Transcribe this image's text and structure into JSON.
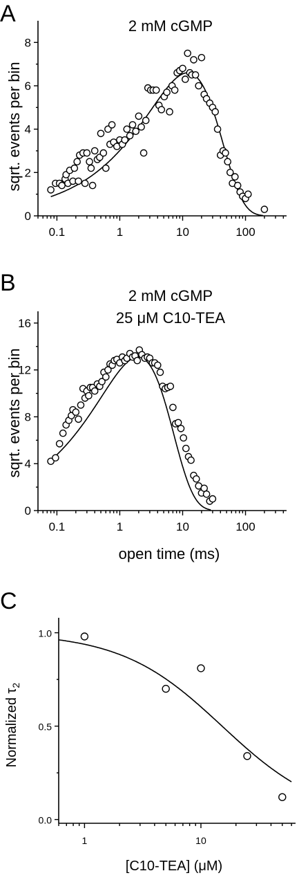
{
  "chart_data": [
    {
      "panel": "A",
      "type": "scatter",
      "title": "2 mM cGMP",
      "subtitle": "",
      "xlabel": "",
      "ylabel": "sqrt. events per bin",
      "xscale": "log",
      "xlim": [
        0.05,
        450
      ],
      "ylim": [
        0,
        9
      ],
      "xticks": [
        0.1,
        1,
        10,
        100
      ],
      "xtick_labels": [
        "0.1",
        "1",
        "10",
        "100"
      ],
      "yticks": [
        0,
        2,
        4,
        6,
        8
      ],
      "ytick_labels": [
        "0",
        "2",
        "4",
        "6",
        "8"
      ],
      "grid": false,
      "points": [
        [
          0.08,
          1.2
        ],
        [
          0.095,
          1.5
        ],
        [
          0.11,
          1.5
        ],
        [
          0.12,
          1.4
        ],
        [
          0.135,
          1.7
        ],
        [
          0.14,
          1.9
        ],
        [
          0.15,
          1.5
        ],
        [
          0.16,
          2.1
        ],
        [
          0.18,
          1.6
        ],
        [
          0.19,
          2.2
        ],
        [
          0.21,
          2.5
        ],
        [
          0.22,
          1.6
        ],
        [
          0.23,
          2.8
        ],
        [
          0.26,
          2.9
        ],
        [
          0.28,
          1.5
        ],
        [
          0.3,
          2.9
        ],
        [
          0.33,
          2.5
        ],
        [
          0.35,
          2.2
        ],
        [
          0.37,
          1.4
        ],
        [
          0.4,
          3.0
        ],
        [
          0.44,
          2.6
        ],
        [
          0.48,
          2.7
        ],
        [
          0.5,
          3.8
        ],
        [
          0.55,
          2.9
        ],
        [
          0.6,
          2.2
        ],
        [
          0.65,
          4.0
        ],
        [
          0.7,
          3.3
        ],
        [
          0.75,
          4.2
        ],
        [
          0.8,
          3.4
        ],
        [
          0.9,
          3.2
        ],
        [
          1.0,
          3.5
        ],
        [
          1.1,
          3.3
        ],
        [
          1.2,
          3.5
        ],
        [
          1.3,
          4.0
        ],
        [
          1.45,
          3.7
        ],
        [
          1.6,
          4.2
        ],
        [
          1.8,
          3.9
        ],
        [
          2.0,
          4.6
        ],
        [
          2.2,
          4.1
        ],
        [
          2.4,
          2.9
        ],
        [
          2.6,
          4.4
        ],
        [
          2.8,
          5.9
        ],
        [
          3.1,
          5.8
        ],
        [
          3.4,
          5.8
        ],
        [
          3.8,
          5.8
        ],
        [
          4.2,
          5.1
        ],
        [
          4.6,
          4.9
        ],
        [
          5.1,
          5.5
        ],
        [
          5.6,
          5.7
        ],
        [
          6.2,
          4.8
        ],
        [
          6.8,
          6.0
        ],
        [
          7.5,
          5.8
        ],
        [
          8.2,
          6.6
        ],
        [
          9,
          6.7
        ],
        [
          10,
          6.8
        ],
        [
          11,
          6.3
        ],
        [
          12,
          7.5
        ],
        [
          13,
          6.6
        ],
        [
          14,
          6.5
        ],
        [
          15,
          7.2
        ],
        [
          16,
          6.5
        ],
        [
          18,
          6.0
        ],
        [
          20,
          7.3
        ],
        [
          22,
          5.6
        ],
        [
          24,
          5.4
        ],
        [
          27,
          5.2
        ],
        [
          30,
          5.0
        ],
        [
          33,
          4.8
        ],
        [
          36,
          4.0
        ],
        [
          40,
          2.8
        ],
        [
          44,
          3.0
        ],
        [
          48,
          2.9
        ],
        [
          52,
          2.5
        ],
        [
          57,
          2.0
        ],
        [
          62,
          1.5
        ],
        [
          68,
          1.8
        ],
        [
          75,
          1.4
        ],
        [
          82,
          1.1
        ],
        [
          90,
          0.9
        ],
        [
          100,
          0.8
        ],
        [
          110,
          1.0
        ],
        [
          200,
          0.3
        ]
      ],
      "fit": {
        "model": "log-binned exponential",
        "tau_ms": 12.0,
        "peak": 6.6,
        "x_range": [
          0.08,
          190
        ]
      }
    },
    {
      "panel": "B",
      "type": "scatter",
      "title": "2 mM cGMP",
      "subtitle": "25 μM C10-TEA",
      "xlabel": "open time (ms)",
      "ylabel": "sqrt. events per bin",
      "xscale": "log",
      "xlim": [
        0.05,
        450
      ],
      "ylim": [
        0,
        17
      ],
      "xticks": [
        0.1,
        1,
        10,
        100
      ],
      "xtick_labels": [
        "0.1",
        "1",
        "10",
        "100"
      ],
      "yticks": [
        0,
        4,
        8,
        12,
        16
      ],
      "ytick_labels": [
        "0",
        "4",
        "8",
        "12",
        "16"
      ],
      "grid": false,
      "points": [
        [
          0.08,
          4.2
        ],
        [
          0.095,
          4.5
        ],
        [
          0.11,
          5.7
        ],
        [
          0.125,
          6.6
        ],
        [
          0.14,
          7.3
        ],
        [
          0.155,
          7.7
        ],
        [
          0.17,
          8.1
        ],
        [
          0.18,
          8.6
        ],
        [
          0.2,
          8.4
        ],
        [
          0.22,
          7.8
        ],
        [
          0.24,
          9.0
        ],
        [
          0.26,
          10.4
        ],
        [
          0.28,
          9.6
        ],
        [
          0.3,
          10.2
        ],
        [
          0.32,
          9.8
        ],
        [
          0.34,
          10.5
        ],
        [
          0.37,
          10.5
        ],
        [
          0.4,
          10.2
        ],
        [
          0.44,
          10.8
        ],
        [
          0.48,
          10.6
        ],
        [
          0.52,
          11.0
        ],
        [
          0.56,
          11.8
        ],
        [
          0.6,
          11.4
        ],
        [
          0.65,
          12.0
        ],
        [
          0.7,
          12.5
        ],
        [
          0.76,
          12.4
        ],
        [
          0.82,
          12.8
        ],
        [
          0.9,
          12.9
        ],
        [
          1.0,
          12.6
        ],
        [
          1.1,
          13.1
        ],
        [
          1.2,
          12.8
        ],
        [
          1.3,
          13.0
        ],
        [
          1.45,
          13.4
        ],
        [
          1.6,
          13.1
        ],
        [
          1.75,
          13.2
        ],
        [
          1.9,
          12.8
        ],
        [
          2.05,
          13.7
        ],
        [
          2.25,
          13.3
        ],
        [
          2.5,
          13.0
        ],
        [
          2.75,
          13.1
        ],
        [
          3.0,
          13.0
        ],
        [
          3.3,
          12.6
        ],
        [
          3.6,
          12.6
        ],
        [
          4.0,
          12.4
        ],
        [
          4.4,
          11.8
        ],
        [
          4.8,
          10.6
        ],
        [
          5.3,
          10.4
        ],
        [
          5.8,
          10.5
        ],
        [
          6.4,
          10.6
        ],
        [
          7.0,
          8.8
        ],
        [
          7.7,
          7.4
        ],
        [
          8.5,
          7.5
        ],
        [
          9.4,
          7.0
        ],
        [
          10.3,
          6.2
        ],
        [
          11.3,
          5.3
        ],
        [
          12.4,
          4.6
        ],
        [
          13.6,
          4.3
        ],
        [
          15,
          3.0
        ],
        [
          16.5,
          2.7
        ],
        [
          18,
          2.1
        ],
        [
          20,
          1.5
        ],
        [
          22,
          1.9
        ],
        [
          24,
          1.4
        ],
        [
          27,
          0.8
        ],
        [
          30,
          1.0
        ]
      ],
      "fit": {
        "model": "log-binned exponential",
        "tau_ms": 1.95,
        "peak": 13.1,
        "x_range": [
          0.085,
          28
        ]
      }
    },
    {
      "panel": "C",
      "type": "scatter",
      "title": "",
      "xlabel": "[C10-TEA] (μM)",
      "ylabel": "Normalized τ",
      "ylabel_subscript": "2",
      "xscale": "log",
      "xlim": [
        0.6,
        65
      ],
      "ylim": [
        -0.02,
        1.08
      ],
      "xticks": [
        1,
        10
      ],
      "xtick_labels": [
        "1",
        "10"
      ],
      "yticks": [
        0.0,
        0.5,
        1.0
      ],
      "ytick_labels": [
        "0.0",
        "0.5",
        "1.0"
      ],
      "grid": false,
      "points": [
        [
          1,
          0.98
        ],
        [
          5,
          0.7
        ],
        [
          10,
          0.81
        ],
        [
          25,
          0.34
        ],
        [
          50,
          0.12
        ]
      ],
      "fit": {
        "model": "1/(1+x/K)",
        "K_uM": 15.2,
        "x_range": [
          0.6,
          60
        ]
      }
    }
  ],
  "panel_labels": [
    "A",
    "B",
    "C"
  ]
}
